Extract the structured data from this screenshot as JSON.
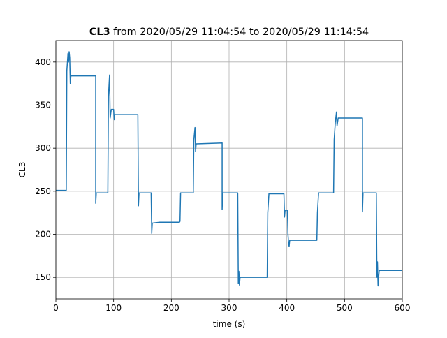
{
  "chart_data": {
    "type": "line",
    "title_bold": "CL3",
    "title": "from 2020/05/29 11:04:54 to 2020/05/29 11:14:54",
    "xlabel": "time (s)",
    "ylabel": "CL3",
    "x": [
      0,
      18,
      19,
      21,
      22,
      23,
      24,
      25,
      26,
      69,
      69,
      70,
      90,
      91,
      93,
      94,
      96,
      100,
      101,
      102,
      142,
      143,
      144,
      165,
      166,
      167,
      180,
      214,
      215,
      216,
      238,
      239,
      241,
      242,
      243,
      288,
      288,
      289,
      315,
      316,
      317,
      318,
      319,
      366,
      367,
      369,
      395,
      396,
      397,
      401,
      402,
      403,
      404,
      405,
      452,
      453,
      455,
      481,
      482,
      484,
      486,
      487,
      489,
      531,
      531,
      532,
      555,
      556,
      557,
      558,
      559,
      560,
      600
    ],
    "series": [
      {
        "name": "CL3",
        "color": "#1f77b4",
        "values": [
          251,
          251,
          390,
          410,
          400,
          412,
          405,
          375,
          384,
          384,
          236,
          248,
          248,
          360,
          385,
          335,
          345,
          345,
          333,
          339,
          339,
          233,
          248,
          248,
          201,
          213,
          214,
          214,
          215,
          248,
          248,
          310,
          324,
          296,
          305,
          306,
          229,
          248,
          248,
          143,
          157,
          141,
          150,
          150,
          225,
          247,
          247,
          220,
          228,
          228,
          200,
          190,
          186,
          193,
          193,
          225,
          248,
          248,
          310,
          330,
          342,
          326,
          335,
          335,
          226,
          248,
          248,
          150,
          168,
          140,
          150,
          158,
          158
        ]
      }
    ],
    "xlim": [
      0,
      600
    ],
    "xticks": [
      0,
      100,
      200,
      300,
      400,
      500,
      600
    ],
    "ylim": [
      125,
      425
    ],
    "yticks": [
      150,
      200,
      250,
      300,
      350,
      400
    ],
    "grid": true
  }
}
